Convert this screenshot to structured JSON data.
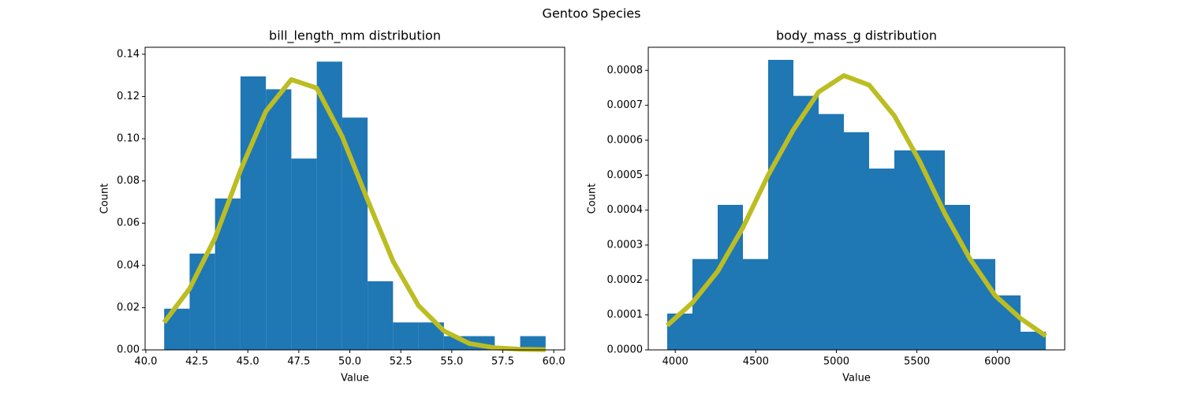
{
  "title": "Gentoo Species",
  "chart_data": [
    {
      "type": "histogram",
      "title": "bill_length_mm distribution",
      "xlabel": "Value",
      "ylabel": "Count",
      "bins": [
        40.9,
        42.147,
        43.393,
        44.64,
        45.887,
        47.133,
        48.38,
        49.627,
        50.873,
        52.12,
        53.367,
        54.613,
        55.86,
        57.107,
        58.353,
        59.6
      ],
      "values": [
        0.0195,
        0.0456,
        0.0717,
        0.1295,
        0.1234,
        0.0906,
        0.1365,
        0.11,
        0.0325,
        0.013,
        0.013,
        0.0065,
        0.0065,
        0,
        0.0065
      ],
      "color": "#1f77b4",
      "line": {
        "x": [
          40.9,
          42.147,
          43.393,
          44.64,
          45.887,
          47.133,
          48.38,
          49.627,
          50.873,
          52.12,
          53.367,
          54.613,
          55.86,
          57.107,
          58.353,
          59.6
        ],
        "values": [
          0.013,
          0.029,
          0.053,
          0.085,
          0.113,
          0.128,
          0.124,
          0.101,
          0.071,
          0.042,
          0.021,
          0.009,
          0.003,
          0.001,
          0.0003,
          0.0001
        ],
        "color": "#bcbd22"
      },
      "xlim": [
        39.965,
        60.535
      ],
      "ylim": [
        0,
        0.1433
      ],
      "xticks": [
        {
          "value": 40,
          "label": "40.0"
        },
        42.5,
        {
          "value": 45,
          "label": "45.0"
        },
        47.5,
        {
          "value": 50,
          "label": "50.0"
        },
        52.5,
        {
          "value": 55,
          "label": "55.0"
        },
        57.5,
        {
          "value": 60,
          "label": "60.0"
        }
      ],
      "yticks": [
        {
          "value": 0,
          "label": "0.00"
        },
        {
          "value": 0.02,
          "label": "0.02"
        },
        {
          "value": 0.04,
          "label": "0.04"
        },
        {
          "value": 0.06,
          "label": "0.06"
        },
        {
          "value": 0.08,
          "label": "0.08"
        },
        {
          "value": 0.1,
          "label": "0.10"
        },
        {
          "value": 0.12,
          "label": "0.12"
        },
        {
          "value": 0.14,
          "label": "0.14"
        }
      ]
    },
    {
      "type": "histogram",
      "title": "body_mass_g distribution",
      "xlabel": "Value",
      "ylabel": "Count",
      "bins": [
        3950,
        4106.67,
        4263.33,
        4420,
        4576.67,
        4733.33,
        4890,
        5046.67,
        5203.33,
        5360,
        5516.67,
        5673.33,
        5830,
        5986.67,
        6143.33,
        6300
      ],
      "values": [
        0.000104,
        0.00026,
        0.000415,
        0.00026,
        0.00083,
        0.000727,
        0.000675,
        0.000623,
        0.000519,
        0.000571,
        0.000571,
        0.000415,
        0.00026,
        0.000156,
        5.2e-05
      ],
      "color": "#1f77b4",
      "line": {
        "x": [
          3950,
          4106.67,
          4263.33,
          4420,
          4576.67,
          4733.33,
          4890,
          5046.67,
          5203.33,
          5360,
          5516.67,
          5673.33,
          5830,
          5986.67,
          6143.33,
          6300
        ],
        "values": [
          7e-05,
          0.000135,
          0.000225,
          0.00035,
          0.0005,
          0.00063,
          0.000738,
          0.000785,
          0.000758,
          0.00067,
          0.00054,
          0.00039,
          0.00026,
          0.000155,
          9e-05,
          4e-05
        ],
        "color": "#bcbd22"
      },
      "xlim": [
        3832.5,
        6417.5
      ],
      "ylim": [
        0,
        0.000866
      ],
      "xticks": [
        4000,
        4500,
        5000,
        5500,
        6000
      ],
      "yticks": [
        {
          "value": 0,
          "label": "0.0000"
        },
        {
          "value": 0.0001,
          "label": "0.0001"
        },
        {
          "value": 0.0002,
          "label": "0.0002"
        },
        {
          "value": 0.0003,
          "label": "0.0003"
        },
        {
          "value": 0.0004,
          "label": "0.0004"
        },
        {
          "value": 0.0005,
          "label": "0.0005"
        },
        {
          "value": 0.0006,
          "label": "0.0006"
        },
        {
          "value": 0.0007,
          "label": "0.0007"
        },
        {
          "value": 0.0008,
          "label": "0.0008"
        }
      ]
    }
  ]
}
